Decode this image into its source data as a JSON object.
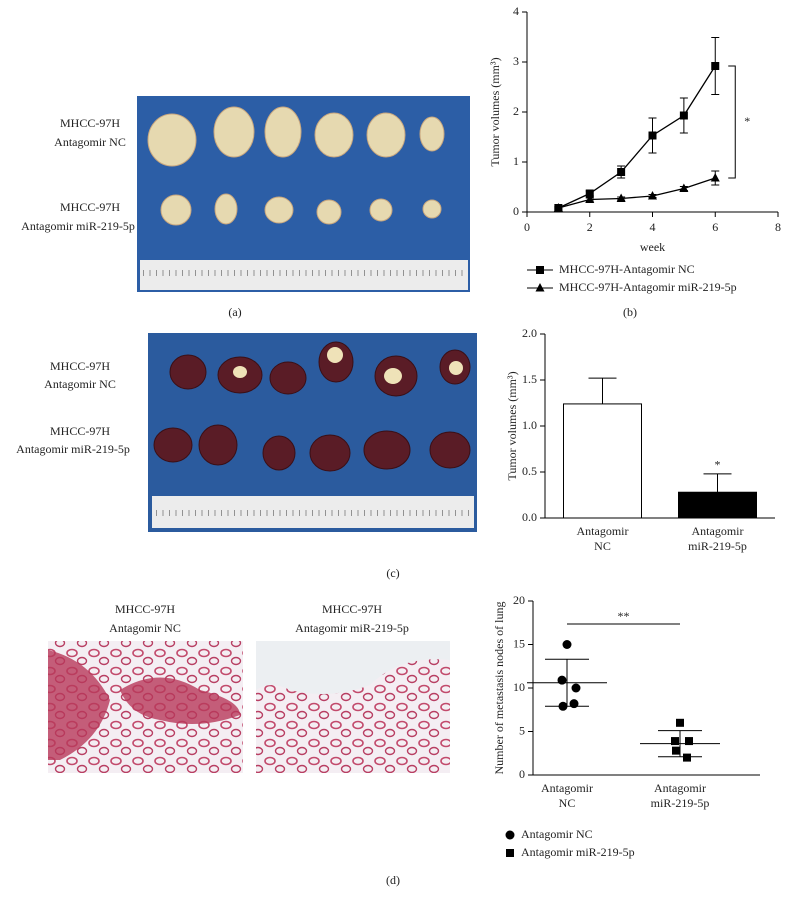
{
  "figure": {
    "panel_labels": [
      "(a)",
      "(b)",
      "(c)",
      "(d)"
    ],
    "photo_a": {
      "row_labels": [
        [
          "MHCC-97H",
          "Antagomir NC"
        ],
        [
          "MHCC-97H",
          "Antagomir miR-219-5p"
        ]
      ]
    },
    "photo_c": {
      "row_labels": [
        [
          "MHCC-97H",
          "Antagomir NC"
        ],
        [
          "MHCC-97H",
          "Antagomir miR-219-5p"
        ]
      ]
    },
    "photo_d": {
      "captions": [
        [
          "MHCC-97H",
          "Antagomir NC"
        ],
        [
          "MHCC-97H",
          "Antagomir miR-219-5p"
        ]
      ]
    }
  },
  "chart_data": [
    {
      "type": "line",
      "ylabel": "Tumor volumes (mm³)",
      "xlabel": "week",
      "x": [
        1,
        2,
        3,
        4,
        5,
        6
      ],
      "series": [
        {
          "name": "MHCC-97H-Antagomir NC",
          "marker": "square",
          "color": "#000000",
          "values": [
            0.08,
            0.37,
            0.8,
            1.53,
            1.93,
            2.92
          ],
          "errors": [
            0.02,
            0.05,
            0.12,
            0.35,
            0.35,
            0.57
          ]
        },
        {
          "name": "MHCC-97H-Antagomir miR-219-5p",
          "marker": "triangle",
          "color": "#000000",
          "values": [
            0.08,
            0.25,
            0.27,
            0.32,
            0.47,
            0.68
          ],
          "errors": [
            0.02,
            0.03,
            0.03,
            0.03,
            0.04,
            0.14
          ]
        }
      ],
      "xlim": [
        0,
        8
      ],
      "xticks": [
        0,
        2,
        4,
        6,
        8
      ],
      "ylim": [
        0,
        4
      ],
      "yticks": [
        0,
        1,
        2,
        3,
        4
      ],
      "annotation": "*",
      "legend": "bottom"
    },
    {
      "type": "bar",
      "ylabel": "Tumor volumes (mm³)",
      "categories": [
        "Antagomir NC",
        "Antagomir miR-219-5p"
      ],
      "values": [
        1.24,
        0.28
      ],
      "errors": [
        0.28,
        0.2
      ],
      "colors": [
        "#ffffff",
        "#000000"
      ],
      "ylim": [
        0,
        2
      ],
      "yticks": [
        {
          "value": 0,
          "label": "0.0"
        },
        0.5,
        {
          "value": 1,
          "label": "1.0"
        },
        1.5,
        {
          "value": 2,
          "label": "2.0"
        }
      ],
      "annotation": "*"
    },
    {
      "type": "scatter",
      "ylabel": "Number of metastasis nodes of lung",
      "categories": [
        "Antagomir NC",
        "Antagomir miR-219-5p"
      ],
      "series": [
        {
          "name": "Antagomir NC",
          "marker": "circle",
          "color": "#000000",
          "values": [
            15,
            10.9,
            10,
            7.9,
            8.2
          ],
          "mean": 10.6,
          "sd": 2.7
        },
        {
          "name": "Antagomir miR-219-5p",
          "marker": "square",
          "color": "#000000",
          "values": [
            6,
            3.9,
            3.9,
            2.8,
            2
          ],
          "mean": 3.6,
          "sd": 1.5
        }
      ],
      "ylim": [
        0,
        20
      ],
      "yticks": [
        0,
        5,
        10,
        15,
        20
      ],
      "annotation": "**",
      "legend": "bottom"
    }
  ]
}
